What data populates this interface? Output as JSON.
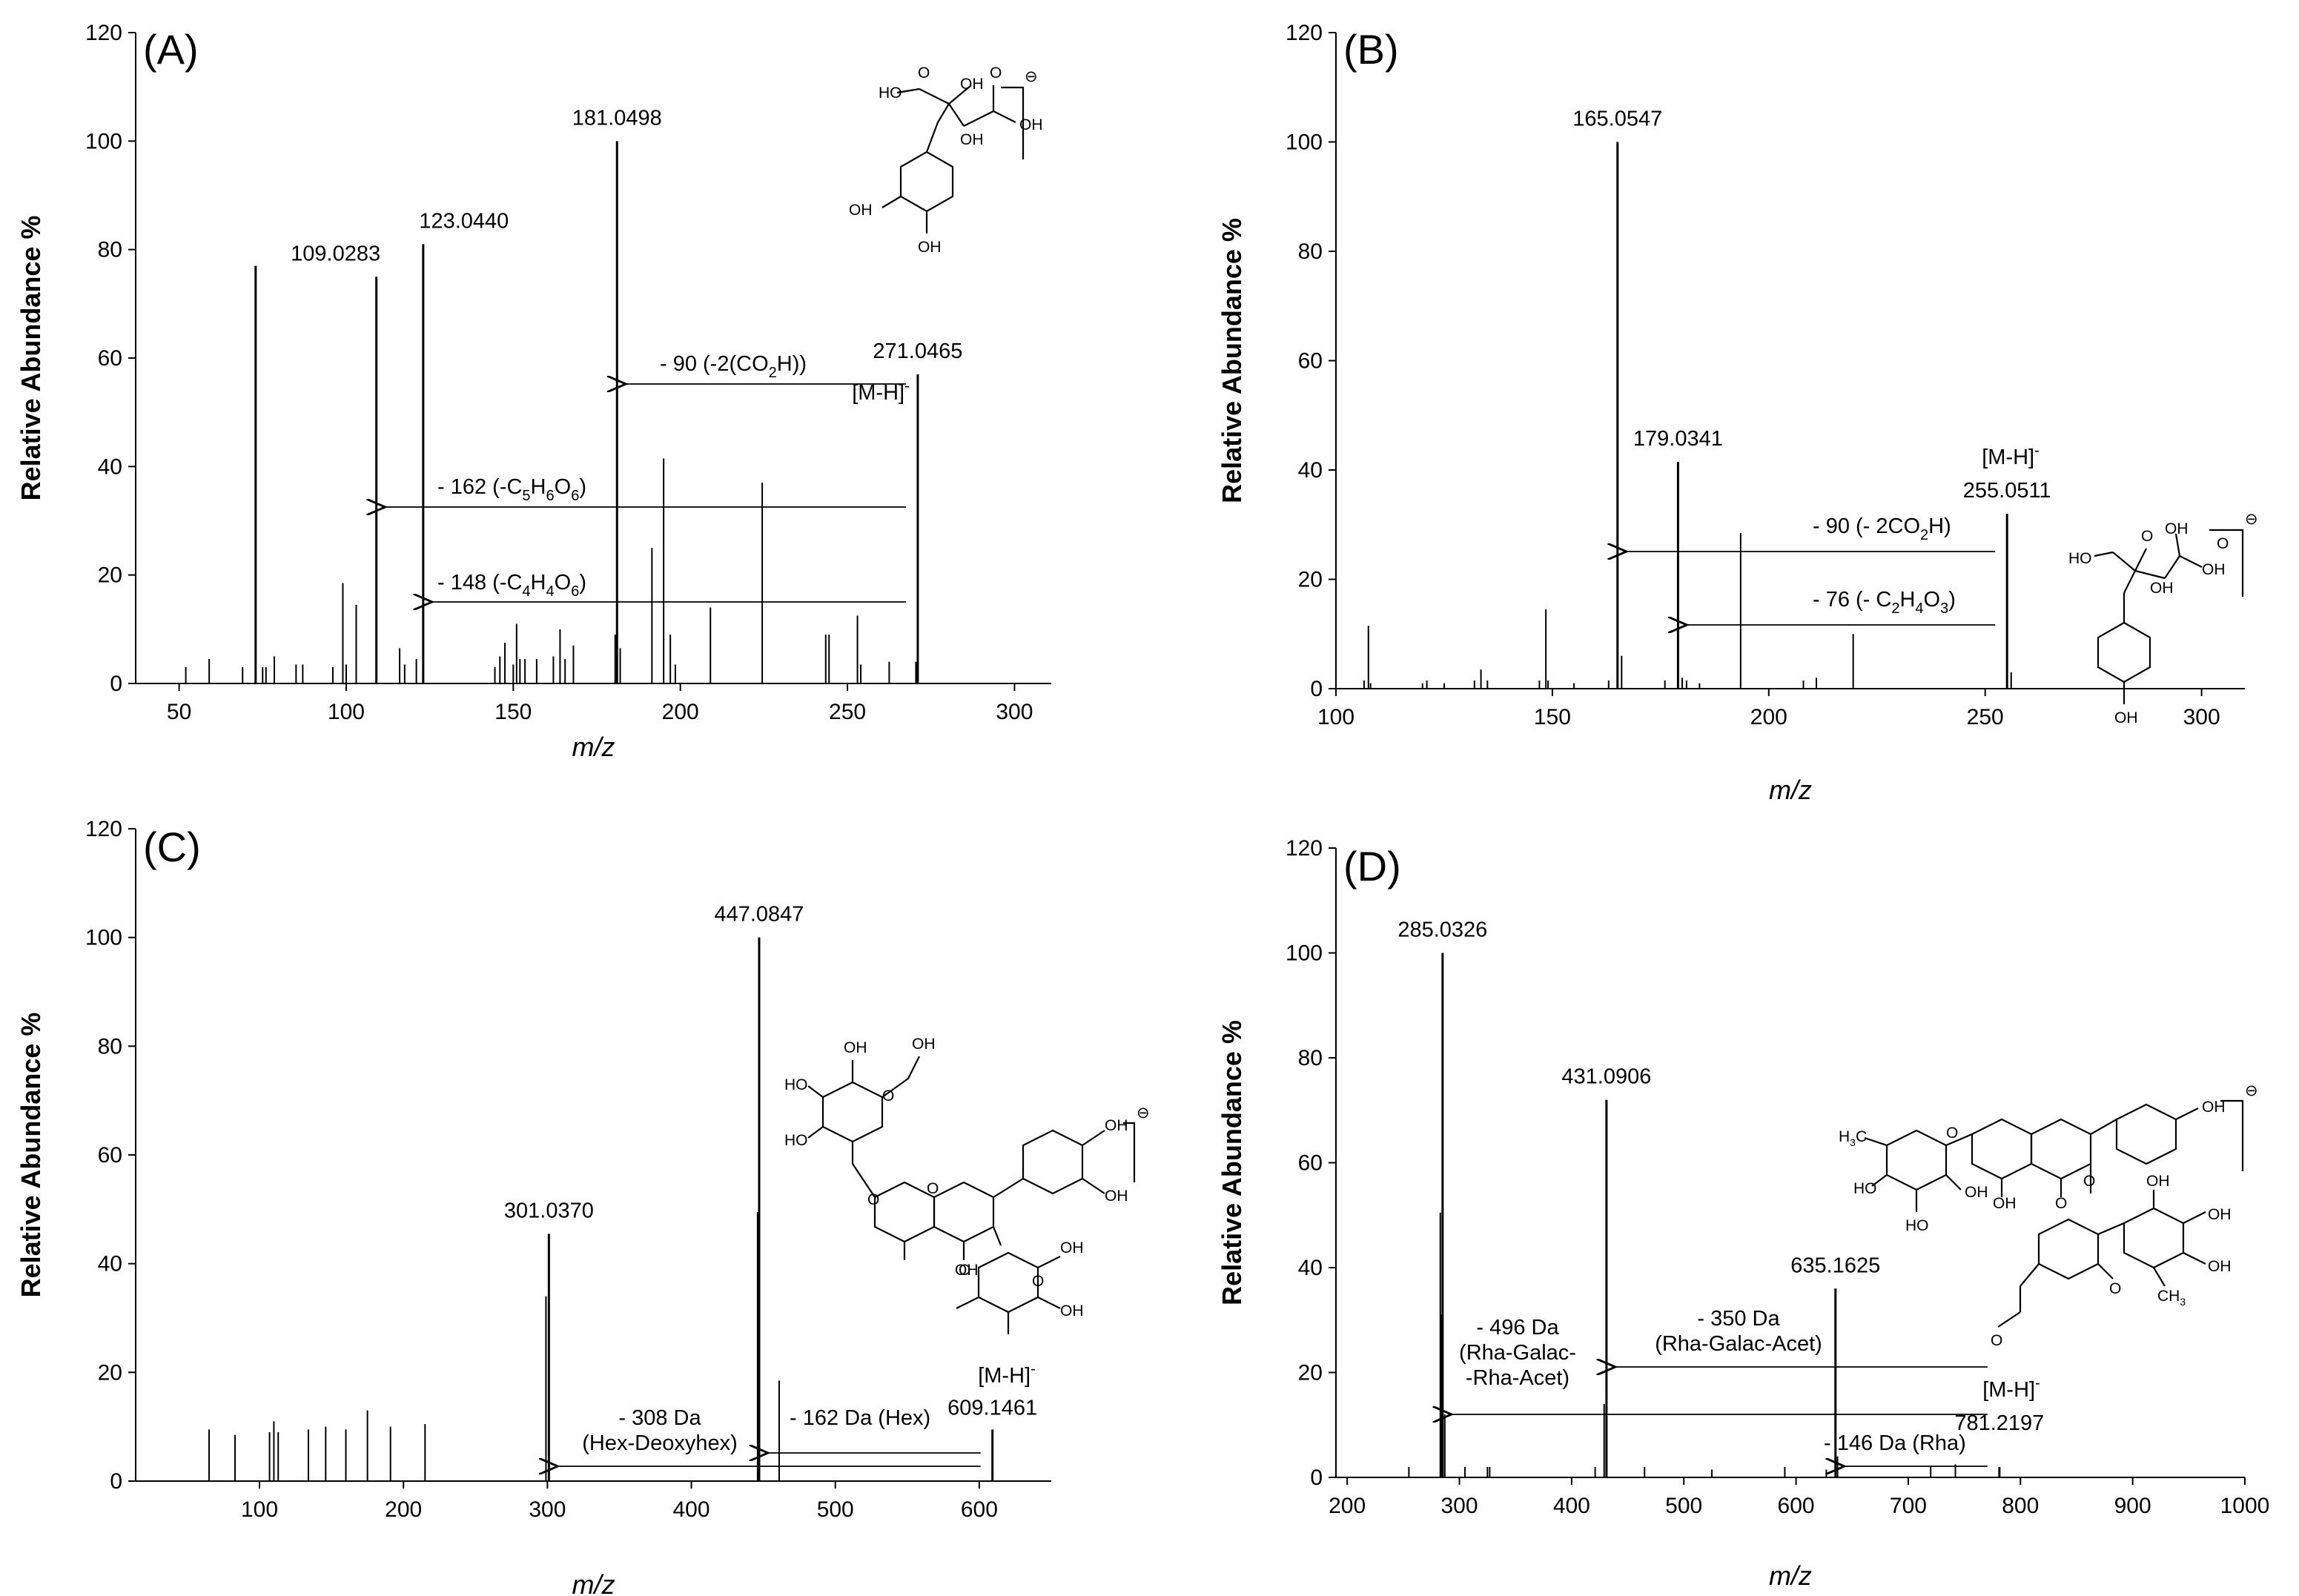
{
  "figure": {
    "panels": [
      {
        "letter": "(A)",
        "ylabel": "Relative Abundance %",
        "xlabel": "m/z",
        "ion_label": "[M-H]",
        "ion_sup": "-",
        "structure_charge": "⊖",
        "structure_groups": [
          "HO",
          "OH",
          "OH",
          "OH",
          "OH",
          "OH",
          "O",
          "O"
        ],
        "annotations": [
          {
            "text": "- 90 (-2(CO",
            "sub": "2",
            "tail": "H))"
          },
          {
            "text": "- 162 (-C",
            "parts": [
              "5",
              "H",
              "6",
              "O",
              "6"
            ],
            "tail": ")"
          },
          {
            "text": "- 148 (-C",
            "parts": [
              "4",
              "H",
              "4",
              "O",
              "6"
            ],
            "tail": ")"
          }
        ]
      },
      {
        "letter": "(B)",
        "ylabel": "Relative Abundance %",
        "xlabel": "m/z",
        "ion_label": "[M-H]",
        "ion_sup": "-",
        "structure_charge": "⊖",
        "structure_groups": [
          "HO",
          "OH",
          "OH",
          "OH",
          "OH",
          "O",
          "O"
        ],
        "annotations": [
          {
            "text": "- 90 (- 2CO",
            "sub": "2",
            "tail": "H)"
          },
          {
            "text": "- 76 (- C",
            "parts": [
              "2",
              "H",
              "4",
              "O",
              "3"
            ],
            "tail": ")"
          }
        ]
      },
      {
        "letter": "(C)",
        "ylabel": "Relative Abundance %",
        "xlabel": "m/z",
        "ion_label": "[M-H]",
        "ion_sup": "-",
        "structure_charge": "⊖",
        "structure_groups": [
          "OH",
          "OH",
          "HO",
          "HO",
          "OH",
          "OH",
          "OH",
          "OH",
          "OH",
          "O",
          "O",
          "O",
          "O",
          "O"
        ],
        "annotations": [
          {
            "line1": "- 308 Da",
            "line2": "(Hex-Deoxyhex)"
          },
          {
            "line1": "- 162 Da (Hex)"
          }
        ]
      },
      {
        "letter": "(D)",
        "ylabel": "Relative Abundance %",
        "xlabel": "m/z",
        "ion_label": "[M-H]",
        "ion_sup": "-",
        "structure_charge": "⊖",
        "structure_groups": [
          "OH",
          "OH",
          "HO",
          "HO",
          "OH",
          "OH",
          "OH",
          "OH",
          "O",
          "O",
          "O",
          "O",
          "O"
        ],
        "structure_methyl": [
          "H",
          "3",
          "C"
        ],
        "structure_methyl2": [
          "CH",
          "3"
        ],
        "annotations": [
          {
            "line1": "- 350 Da",
            "line2": "(Rha-Galac-Acet)"
          },
          {
            "line1": "- 496 Da",
            "line2": "(Rha-Galac-",
            "line3": "-Rha-Acet)"
          },
          {
            "line1": "- 146 Da (Rha)"
          }
        ]
      }
    ]
  },
  "chart_data": [
    {
      "type": "bar",
      "panel": "A",
      "xlabel": "m/z",
      "ylabel": "Relative Abundance %",
      "xlim": [
        37,
        311
      ],
      "ylim": [
        0,
        120
      ],
      "xticks": [
        50,
        100,
        150,
        200,
        250,
        300
      ],
      "yticks": [
        0,
        20,
        40,
        60,
        80,
        100,
        120
      ],
      "peaks": [
        {
          "mz": 52,
          "int": 3
        },
        {
          "mz": 59,
          "int": 4.5
        },
        {
          "mz": 69,
          "int": 3
        },
        {
          "mz": 72.9,
          "int": 77
        },
        {
          "mz": 75,
          "int": 3
        },
        {
          "mz": 76,
          "int": 3
        },
        {
          "mz": 78.5,
          "int": 5
        },
        {
          "mz": 85,
          "int": 3.5
        },
        {
          "mz": 87,
          "int": 3.5
        },
        {
          "mz": 96,
          "int": 3
        },
        {
          "mz": 99,
          "int": 18.5
        },
        {
          "mz": 100,
          "int": 3.5
        },
        {
          "mz": 103,
          "int": 14.5
        },
        {
          "mz": 109.0283,
          "int": 75,
          "label": "109.0283"
        },
        {
          "mz": 116,
          "int": 6.5
        },
        {
          "mz": 117.5,
          "int": 3.5
        },
        {
          "mz": 121,
          "int": 4.5
        },
        {
          "mz": 123.044,
          "int": 81,
          "label": "123.0440"
        },
        {
          "mz": 144.5,
          "int": 3
        },
        {
          "mz": 146,
          "int": 5
        },
        {
          "mz": 147.5,
          "int": 7.5
        },
        {
          "mz": 150,
          "int": 3.5
        },
        {
          "mz": 151,
          "int": 11
        },
        {
          "mz": 152,
          "int": 4.5
        },
        {
          "mz": 153.5,
          "int": 4.5
        },
        {
          "mz": 157,
          "int": 4.5
        },
        {
          "mz": 162,
          "int": 5
        },
        {
          "mz": 164,
          "int": 10
        },
        {
          "mz": 165.5,
          "int": 4.5
        },
        {
          "mz": 168,
          "int": 7
        },
        {
          "mz": 181.0498,
          "int": 100,
          "label": "181.0498"
        },
        {
          "mz": 180.5,
          "int": 9
        },
        {
          "mz": 182,
          "int": 6.5
        },
        {
          "mz": 191.5,
          "int": 25
        },
        {
          "mz": 195,
          "int": 41.5
        },
        {
          "mz": 197,
          "int": 9
        },
        {
          "mz": 198.5,
          "int": 3.5
        },
        {
          "mz": 209,
          "int": 14
        },
        {
          "mz": 224.5,
          "int": 37
        },
        {
          "mz": 243.5,
          "int": 9
        },
        {
          "mz": 244.5,
          "int": 9
        },
        {
          "mz": 253,
          "int": 12.5
        },
        {
          "mz": 254,
          "int": 3.5
        },
        {
          "mz": 262.5,
          "int": 4
        },
        {
          "mz": 271.0465,
          "int": 57,
          "label": "271.0465",
          "precursor": true
        },
        {
          "mz": 270.5,
          "int": 4
        }
      ],
      "annotations": [
        {
          "label": "- 90 (-2(CO2H))",
          "from": 271.0465,
          "to": 181.0498
        },
        {
          "label": "- 162 (-C5H6O6)",
          "from": 271.0465,
          "to": 109.0283
        },
        {
          "label": "- 148 (-C4H4O6)",
          "from": 271.0465,
          "to": 123.044
        }
      ]
    },
    {
      "type": "bar",
      "panel": "B",
      "xlabel": "m/z",
      "ylabel": "Relative Abundance %",
      "xlim": [
        100,
        310
      ],
      "ylim": [
        0,
        120
      ],
      "xticks": [
        100,
        150,
        200,
        250,
        300
      ],
      "yticks": [
        0,
        20,
        40,
        60,
        80,
        100,
        120
      ],
      "peaks": [
        {
          "mz": 106.5,
          "int": 1.5
        },
        {
          "mz": 107.5,
          "int": 11.5
        },
        {
          "mz": 108,
          "int": 1
        },
        {
          "mz": 120,
          "int": 1
        },
        {
          "mz": 121,
          "int": 1.5
        },
        {
          "mz": 125,
          "int": 1
        },
        {
          "mz": 132,
          "int": 1.5
        },
        {
          "mz": 133.5,
          "int": 3.5
        },
        {
          "mz": 135,
          "int": 1.5
        },
        {
          "mz": 147,
          "int": 1.5
        },
        {
          "mz": 148.5,
          "int": 14.5
        },
        {
          "mz": 149,
          "int": 1.5
        },
        {
          "mz": 155,
          "int": 1
        },
        {
          "mz": 163,
          "int": 1.5
        },
        {
          "mz": 165.0547,
          "int": 100,
          "label": "165.0547"
        },
        {
          "mz": 166,
          "int": 6
        },
        {
          "mz": 176,
          "int": 1.5
        },
        {
          "mz": 179.0341,
          "int": 41.5,
          "label": "179.0341"
        },
        {
          "mz": 180,
          "int": 2
        },
        {
          "mz": 181,
          "int": 1.5
        },
        {
          "mz": 184,
          "int": 1
        },
        {
          "mz": 193.5,
          "int": 28.5
        },
        {
          "mz": 208,
          "int": 1.5
        },
        {
          "mz": 211,
          "int": 2
        },
        {
          "mz": 219.5,
          "int": 10
        },
        {
          "mz": 255.0511,
          "int": 32,
          "label": "255.0511",
          "precursor": true
        },
        {
          "mz": 256,
          "int": 3
        }
      ],
      "annotations": [
        {
          "label": "- 90 (- 2CO2H)",
          "from": 255.0511,
          "to": 165.0547
        },
        {
          "label": "- 76 (- C2H4O3)",
          "from": 255.0511,
          "to": 179.0341
        }
      ]
    },
    {
      "type": "bar",
      "panel": "C",
      "xlabel": "m/z",
      "ylabel": "Relative Abundance %",
      "xlim": [
        14,
        650
      ],
      "ylim": [
        0,
        120
      ],
      "xticks": [
        100,
        200,
        300,
        400,
        500,
        600
      ],
      "yticks": [
        0,
        20,
        40,
        60,
        80,
        100,
        120
      ],
      "peaks": [
        {
          "mz": 65,
          "int": 9.5
        },
        {
          "mz": 83,
          "int": 8.5
        },
        {
          "mz": 107,
          "int": 9
        },
        {
          "mz": 110,
          "int": 11
        },
        {
          "mz": 113,
          "int": 9
        },
        {
          "mz": 134,
          "int": 9.5
        },
        {
          "mz": 146,
          "int": 10
        },
        {
          "mz": 160,
          "int": 9.5
        },
        {
          "mz": 175,
          "int": 13
        },
        {
          "mz": 191,
          "int": 10
        },
        {
          "mz": 215,
          "int": 10.5
        },
        {
          "mz": 299,
          "int": 34
        },
        {
          "mz": 301.037,
          "int": 45.5,
          "label": "301.0370"
        },
        {
          "mz": 446,
          "int": 49.5
        },
        {
          "mz": 447.0847,
          "int": 100,
          "label": "447.0847"
        },
        {
          "mz": 461,
          "int": 18.5
        },
        {
          "mz": 609.1461,
          "int": 9.5,
          "label": "609.1461",
          "precursor": true
        }
      ],
      "annotations": [
        {
          "label": "- 308 Da (Hex-Deoxyhex)",
          "from": 609.1461,
          "to": 301.037
        },
        {
          "label": "- 162 Da (Hex)",
          "from": 609.1461,
          "to": 447.0847
        }
      ]
    },
    {
      "type": "bar",
      "panel": "D",
      "xlabel": "m/z",
      "ylabel": "Relative Abundance %",
      "xlim": [
        190,
        1000
      ],
      "ylim": [
        0,
        120
      ],
      "xticks": [
        200,
        300,
        400,
        500,
        600,
        700,
        800,
        900,
        1000
      ],
      "yticks": [
        0,
        20,
        40,
        60,
        80,
        100,
        120
      ],
      "peaks": [
        {
          "mz": 255,
          "int": 2
        },
        {
          "mz": 283,
          "int": 50.5
        },
        {
          "mz": 284,
          "int": 31
        },
        {
          "mz": 285.0326,
          "int": 100,
          "label": "285.0326"
        },
        {
          "mz": 287,
          "int": 12
        },
        {
          "mz": 305,
          "int": 2
        },
        {
          "mz": 325,
          "int": 2
        },
        {
          "mz": 327,
          "int": 2
        },
        {
          "mz": 421,
          "int": 2
        },
        {
          "mz": 429,
          "int": 14
        },
        {
          "mz": 431.0906,
          "int": 72,
          "label": "431.0906"
        },
        {
          "mz": 465,
          "int": 2
        },
        {
          "mz": 525,
          "int": 1.5
        },
        {
          "mz": 590,
          "int": 2
        },
        {
          "mz": 627,
          "int": 1.5
        },
        {
          "mz": 635.1625,
          "int": 36,
          "label": "635.1625"
        },
        {
          "mz": 637,
          "int": 4
        },
        {
          "mz": 720,
          "int": 2
        },
        {
          "mz": 742,
          "int": 2.5
        },
        {
          "mz": 781.2197,
          "int": 2,
          "label": "781.2197",
          "precursor": true
        }
      ],
      "annotations": [
        {
          "label": "- 350 Da (Rha-Galac-Acet)",
          "from": 781.2197,
          "to": 431.0906
        },
        {
          "label": "- 496 Da (Rha-Galac--Rha-Acet)",
          "from": 781.2197,
          "to": 285.0326
        },
        {
          "label": "- 146 Da (Rha)",
          "from": 781.2197,
          "to": 635.1625
        }
      ]
    }
  ]
}
